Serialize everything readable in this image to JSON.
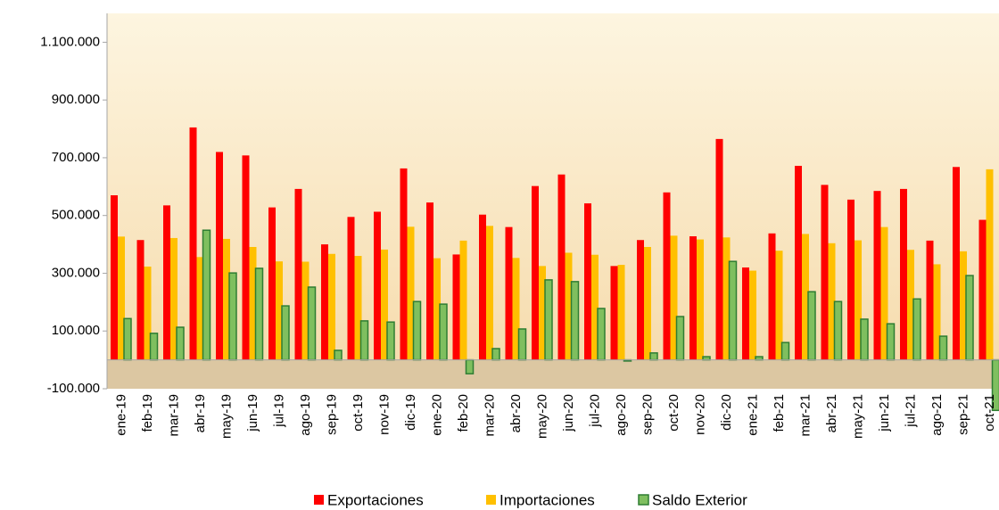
{
  "chart_data": {
    "type": "bar",
    "categories": [
      "ene-19",
      "feb-19",
      "mar-19",
      "abr-19",
      "may-19",
      "jun-19",
      "jul-19",
      "ago-19",
      "sep-19",
      "oct-19",
      "nov-19",
      "dic-19",
      "ene-20",
      "feb-20",
      "mar-20",
      "abr-20",
      "may-20",
      "jun-20",
      "jul-20",
      "ago-20",
      "sep-20",
      "oct-20",
      "nov-20",
      "dic-20",
      "ene-21",
      "feb-21",
      "mar-21",
      "abr-21",
      "may-21",
      "jun-21",
      "jul-21",
      "ago-21",
      "sep-21",
      "oct-21"
    ],
    "series": [
      {
        "name": "Exportaciones",
        "color": "#ff0000",
        "values": [
          570000,
          415000,
          535000,
          805000,
          720000,
          708000,
          528000,
          592000,
          400000,
          495000,
          513000,
          663000,
          545000,
          365000,
          503000,
          460000,
          602000,
          642000,
          542000,
          325000,
          415000,
          580000,
          428000,
          765000,
          320000,
          438000,
          672000,
          606000,
          555000,
          585000,
          592000,
          413000,
          668000,
          485000
        ]
      },
      {
        "name": "Importaciones",
        "color": "#ffc000",
        "values": [
          427000,
          323000,
          422000,
          356000,
          419000,
          391000,
          341000,
          340000,
          367000,
          360000,
          382000,
          461000,
          352000,
          413000,
          464000,
          353000,
          325000,
          371000,
          364000,
          329000,
          391000,
          430000,
          417000,
          424000,
          309000,
          378000,
          436000,
          404000,
          414000,
          460000,
          381000,
          331000,
          376000,
          660000
        ]
      },
      {
        "name": "Saldo Exterior",
        "color": "#7fbf5f",
        "values": [
          143000,
          92000,
          113000,
          449000,
          301000,
          317000,
          187000,
          252000,
          33000,
          135000,
          131000,
          202000,
          193000,
          -48000,
          39000,
          107000,
          277000,
          271000,
          178000,
          -4000,
          24000,
          150000,
          11000,
          341000,
          11000,
          60000,
          236000,
          202000,
          141000,
          125000,
          211000,
          82000,
          292000,
          -175000
        ]
      }
    ],
    "ylim": [
      -100000,
      1200000
    ],
    "yticks": [
      {
        "value": -100000,
        "label": "-100.000"
      },
      {
        "value": 100000,
        "label": "100.000"
      },
      {
        "value": 300000,
        "label": "300.000"
      },
      {
        "value": 500000,
        "label": "500.000"
      },
      {
        "value": 700000,
        "label": "700.000"
      },
      {
        "value": 900000,
        "label": "900.000"
      },
      {
        "value": 1100000,
        "label": "1.100.000"
      }
    ],
    "legend": "bottom"
  }
}
